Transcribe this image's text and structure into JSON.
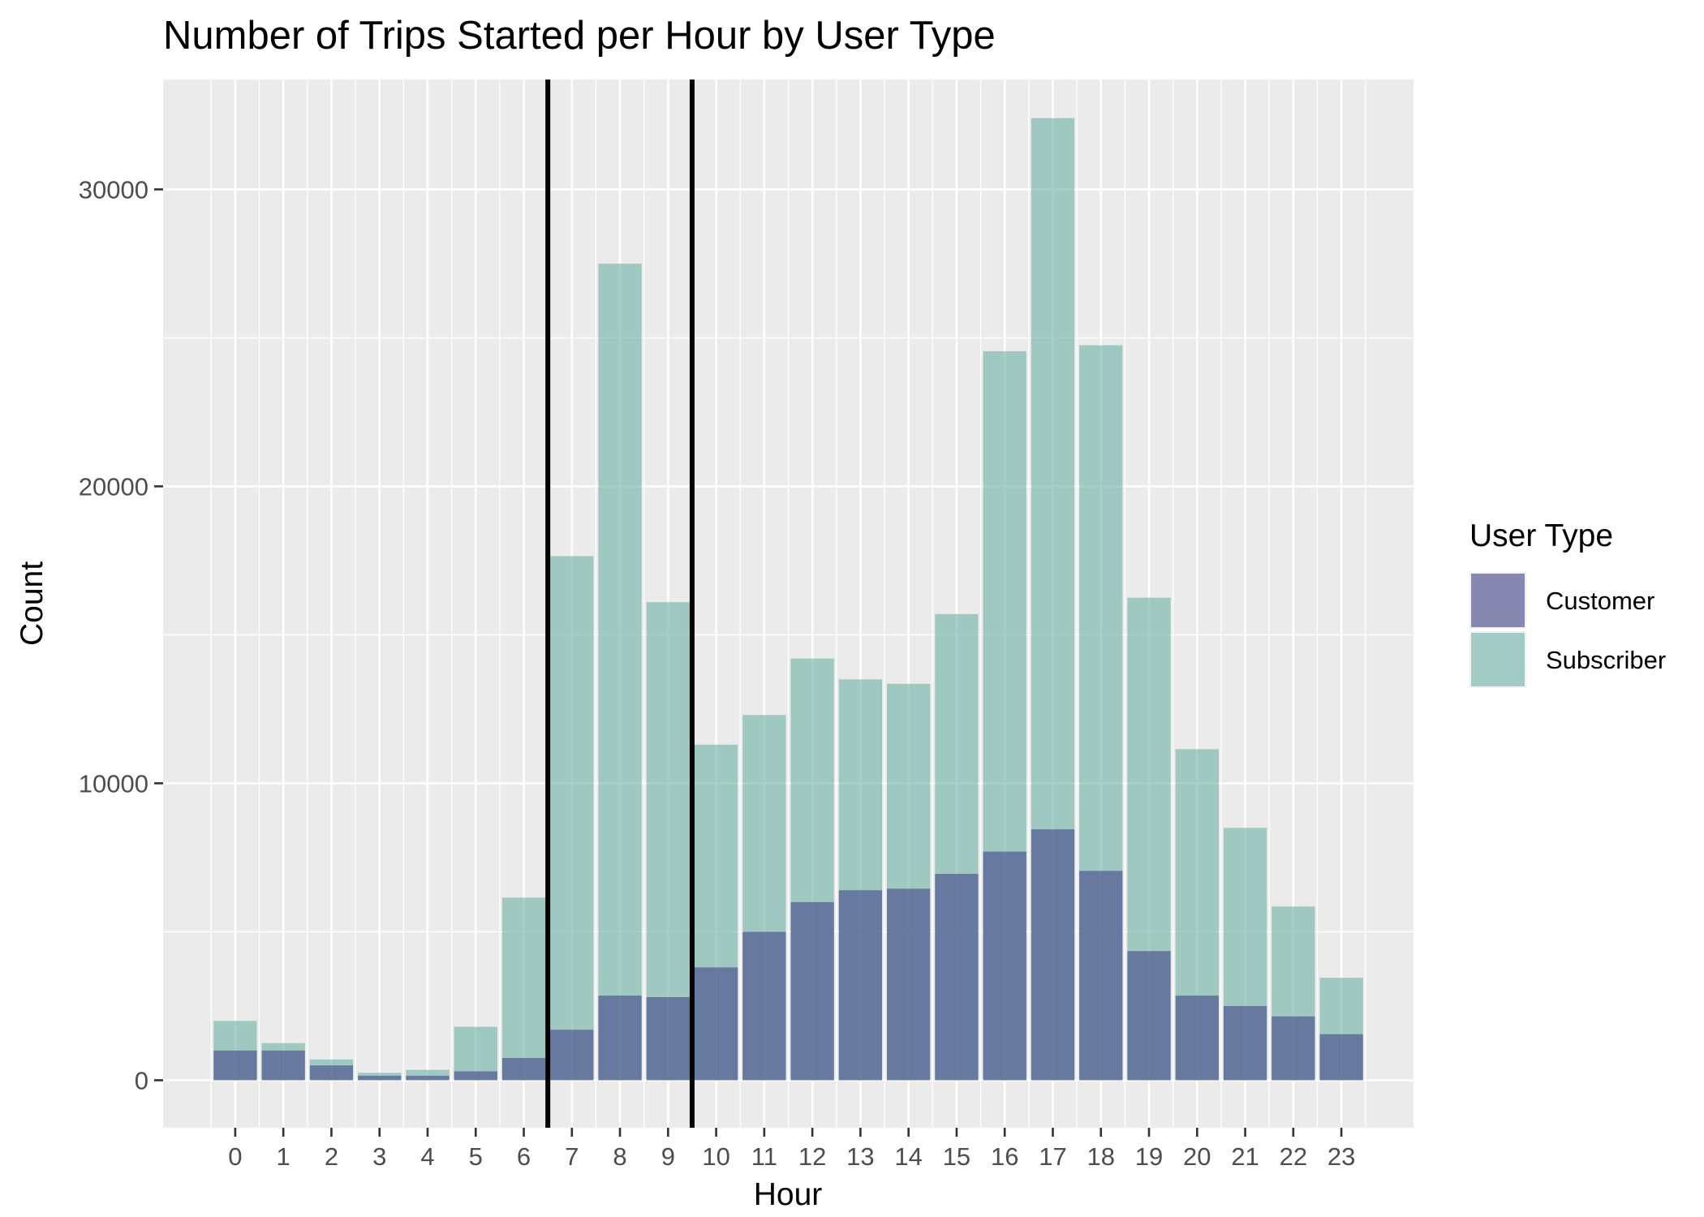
{
  "chart_data": {
    "type": "bar",
    "title": "Number of Trips Started per Hour by User Type",
    "xlabel": "Hour",
    "ylabel": "Count",
    "x": [
      "0",
      "1",
      "2",
      "3",
      "4",
      "5",
      "6",
      "7",
      "8",
      "9",
      "10",
      "11",
      "12",
      "13",
      "14",
      "15",
      "16",
      "17",
      "18",
      "19",
      "20",
      "21",
      "22",
      "23"
    ],
    "x_numeric": [
      0,
      1,
      2,
      3,
      4,
      5,
      6,
      7,
      8,
      9,
      10,
      11,
      12,
      13,
      14,
      15,
      16,
      17,
      18,
      19,
      20,
      21,
      22,
      23
    ],
    "xlim": [
      -1.5,
      24.5
    ],
    "ylim": [
      -1600,
      33700
    ],
    "yticks": [
      0,
      10000,
      20000,
      30000
    ],
    "ytick_labels": [
      "0",
      "10000",
      "20000",
      "30000"
    ],
    "grid": true,
    "overlay": "identity",
    "legend": {
      "title": "User Type",
      "position": "right"
    },
    "series": [
      {
        "name": "Subscriber",
        "color": "#76b7a9",
        "alpha": 0.65,
        "values": [
          2000,
          1250,
          700,
          250,
          350,
          1800,
          6150,
          17650,
          27500,
          16100,
          11300,
          12300,
          14200,
          13500,
          13350,
          15700,
          24550,
          32400,
          24750,
          16250,
          11150,
          8500,
          5850,
          3450
        ]
      },
      {
        "name": "Customer",
        "color": "#4b4e8d",
        "alpha": 0.65,
        "values": [
          1000,
          1000,
          500,
          150,
          150,
          300,
          750,
          1700,
          2850,
          2800,
          3800,
          5000,
          6000,
          6400,
          6450,
          6950,
          7700,
          8450,
          7050,
          4350,
          2850,
          2500,
          2150,
          1550
        ]
      }
    ],
    "legend_order": [
      "Customer",
      "Subscriber"
    ],
    "vlines": [
      {
        "x": 6.5,
        "color": "#000000"
      },
      {
        "x": 9.5,
        "color": "#000000"
      }
    ],
    "panel_background": "#ebebeb",
    "grid_color": "#ffffff"
  }
}
